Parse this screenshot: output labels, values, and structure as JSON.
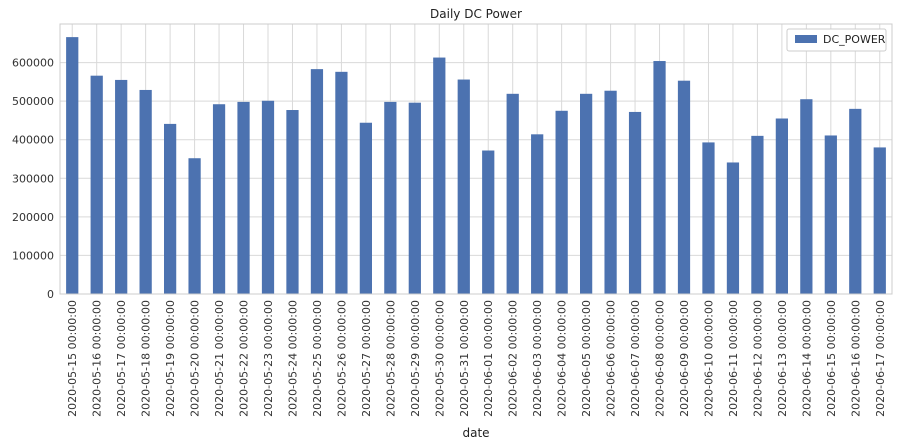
{
  "chart_data": {
    "type": "bar",
    "title": "Daily DC Power",
    "xlabel": "date",
    "ylabel": "",
    "ylim": [
      0,
      700000
    ],
    "yticks": [
      0,
      100000,
      200000,
      300000,
      400000,
      500000,
      600000
    ],
    "ytick_labels": [
      "0",
      "100000",
      "200000",
      "300000",
      "400000",
      "500000",
      "600000"
    ],
    "grid": true,
    "legend_position": "top-right",
    "categories": [
      "2020-05-15 00:00:00",
      "2020-05-16 00:00:00",
      "2020-05-17 00:00:00",
      "2020-05-18 00:00:00",
      "2020-05-19 00:00:00",
      "2020-05-20 00:00:00",
      "2020-05-21 00:00:00",
      "2020-05-22 00:00:00",
      "2020-05-23 00:00:00",
      "2020-05-24 00:00:00",
      "2020-05-25 00:00:00",
      "2020-05-26 00:00:00",
      "2020-05-27 00:00:00",
      "2020-05-28 00:00:00",
      "2020-05-29 00:00:00",
      "2020-05-30 00:00:00",
      "2020-05-31 00:00:00",
      "2020-06-01 00:00:00",
      "2020-06-02 00:00:00",
      "2020-06-03 00:00:00",
      "2020-06-04 00:00:00",
      "2020-06-05 00:00:00",
      "2020-06-06 00:00:00",
      "2020-06-07 00:00:00",
      "2020-06-08 00:00:00",
      "2020-06-09 00:00:00",
      "2020-06-10 00:00:00",
      "2020-06-11 00:00:00",
      "2020-06-12 00:00:00",
      "2020-06-13 00:00:00",
      "2020-06-14 00:00:00",
      "2020-06-15 00:00:00",
      "2020-06-16 00:00:00",
      "2020-06-17 00:00:00"
    ],
    "series": [
      {
        "name": "DC_POWER",
        "color": "#4c72b0",
        "values": [
          666000,
          566000,
          555000,
          529000,
          441000,
          352000,
          492000,
          498000,
          501000,
          477000,
          583000,
          576000,
          444000,
          498000,
          496000,
          613000,
          556000,
          372000,
          519000,
          414000,
          475000,
          519000,
          527000,
          472000,
          604000,
          553000,
          393000,
          341000,
          410000,
          455000,
          505000,
          411000,
          480000,
          380000
        ]
      }
    ]
  }
}
